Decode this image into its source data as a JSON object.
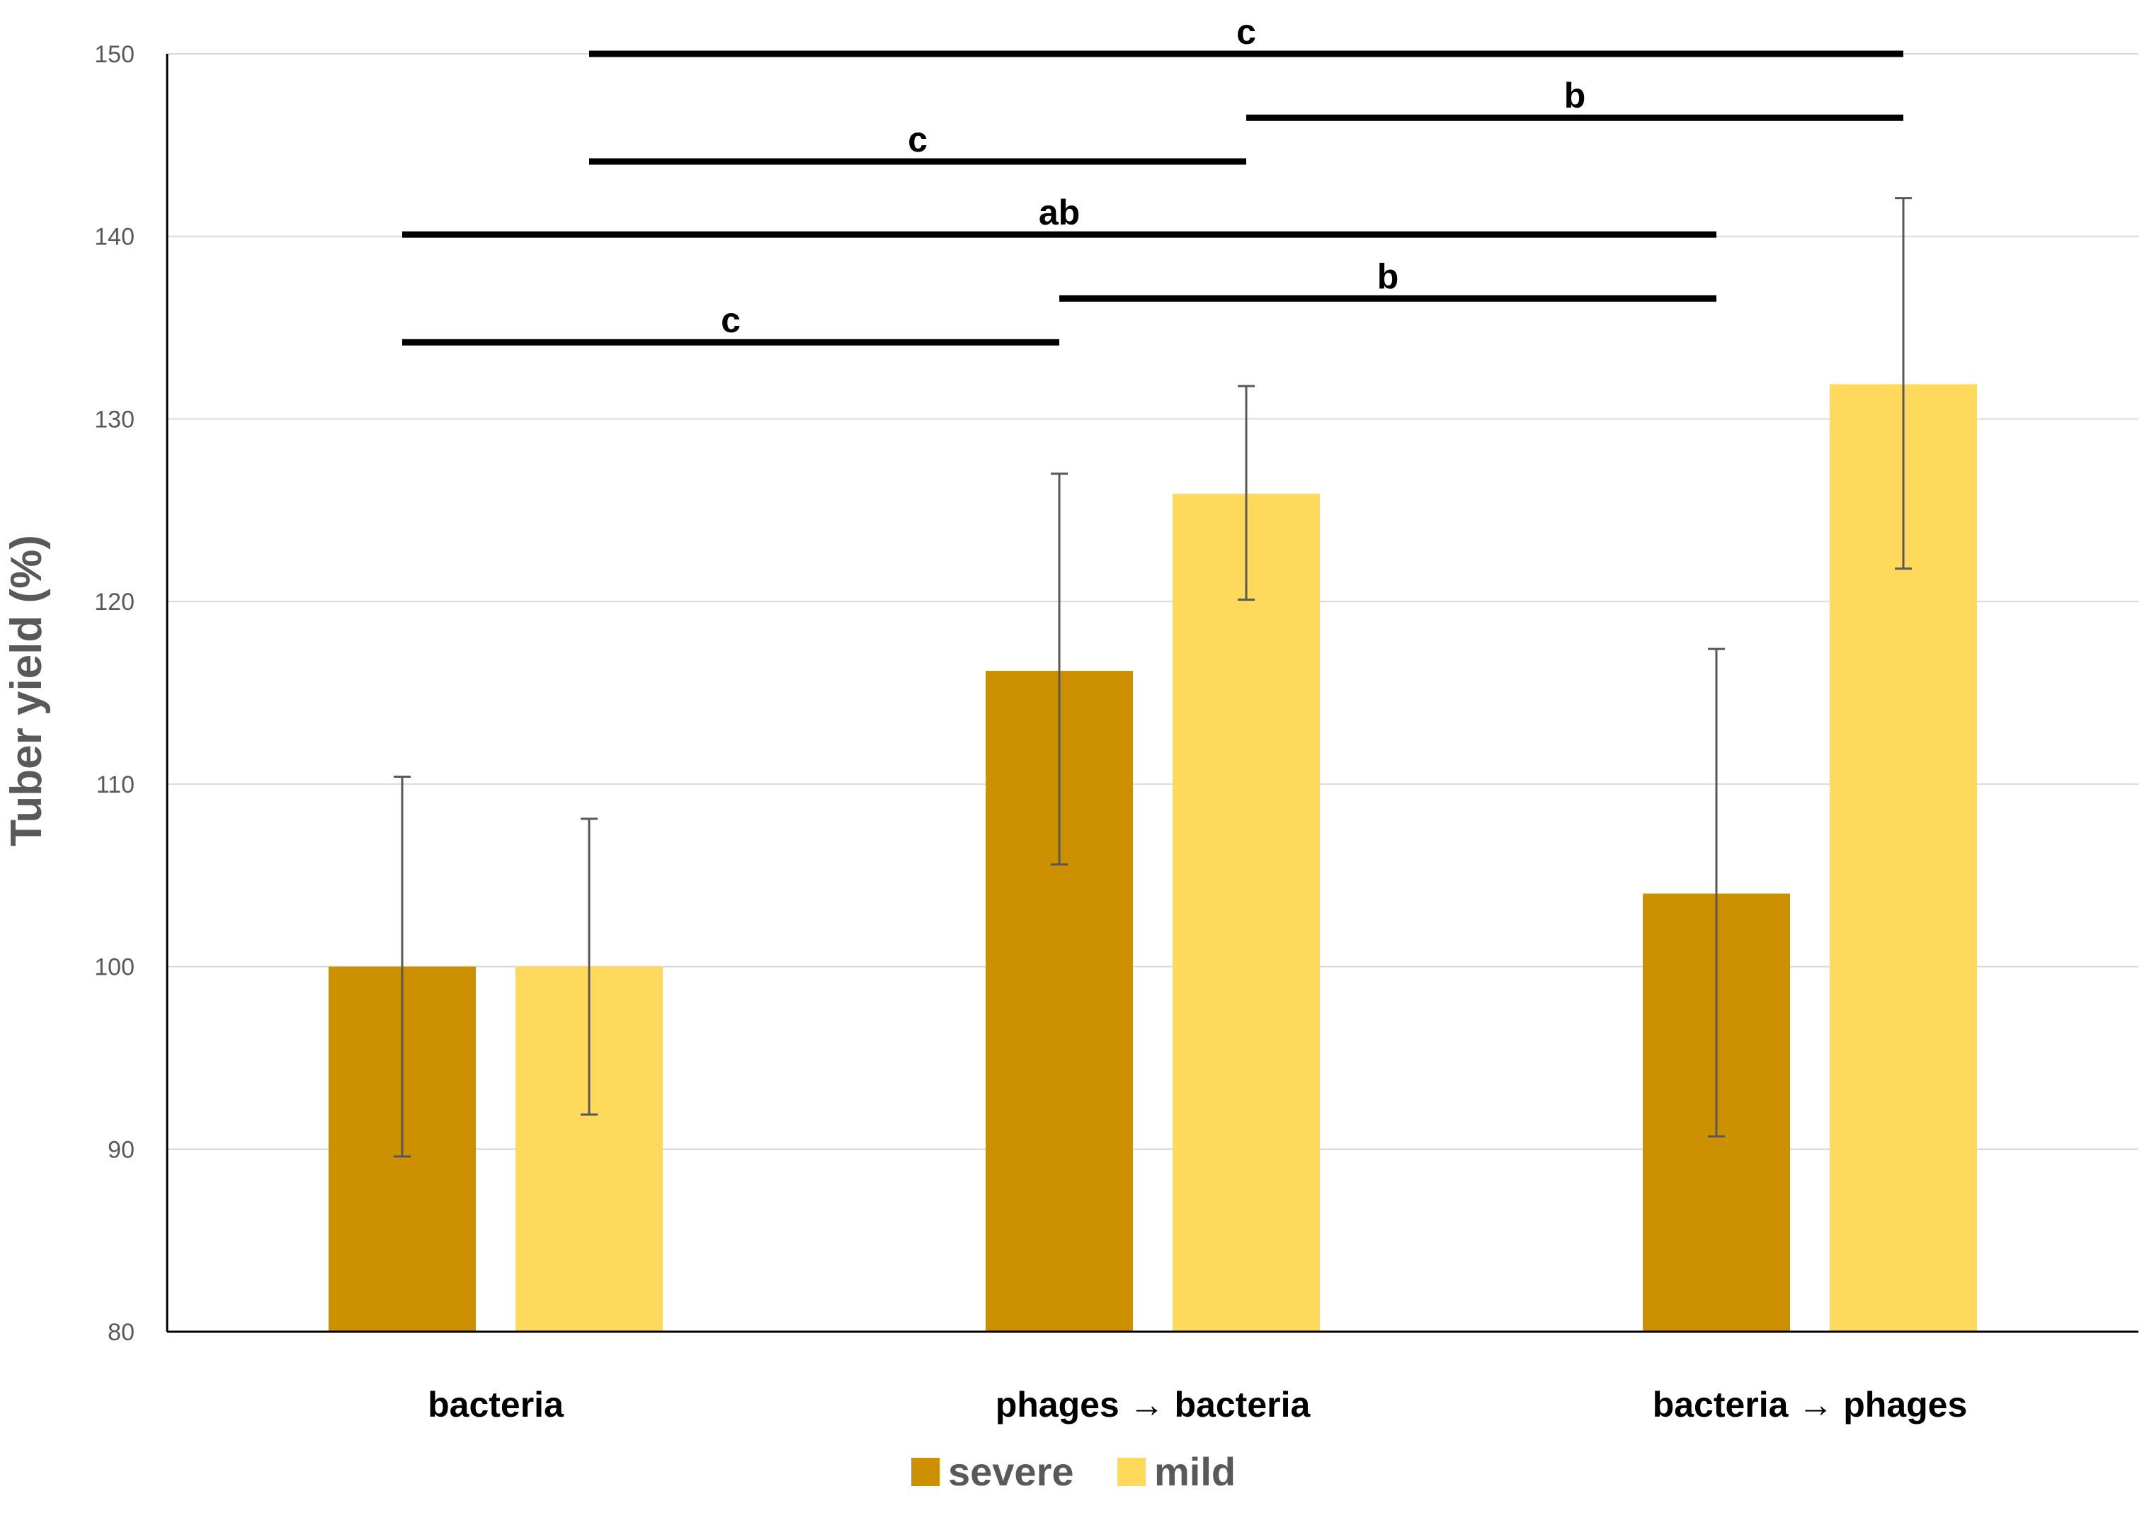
{
  "chart_data": {
    "type": "bar",
    "title": "",
    "xlabel": "",
    "ylabel": "Tuber yield (%)",
    "ylim": [
      80,
      150
    ],
    "yticks": [
      80,
      90,
      100,
      110,
      120,
      130,
      140,
      150
    ],
    "grid": true,
    "legend_position": "bottom-center",
    "categories": [
      "bacteria",
      "phages → bacteria",
      "bacteria → phages"
    ],
    "series": [
      {
        "name": "severe",
        "color": "#CC9000",
        "values": [
          100,
          116.2,
          104
        ],
        "errors": [
          [
            89.6,
            110.4
          ],
          [
            105.6,
            127.0
          ],
          [
            90.7,
            117.4
          ]
        ]
      },
      {
        "name": "mild",
        "color": "#FFD95C",
        "values": [
          100,
          125.9,
          131.9
        ],
        "errors": [
          [
            91.9,
            108.1
          ],
          [
            120.1,
            131.8
          ],
          [
            121.8,
            142.1
          ]
        ]
      }
    ],
    "significance": [
      {
        "from": [
          0,
          0
        ],
        "to": [
          1,
          0
        ],
        "y": 134.2,
        "label": "c"
      },
      {
        "from": [
          1,
          0
        ],
        "to": [
          2,
          0
        ],
        "y": 136.6,
        "label": "b"
      },
      {
        "from": [
          0,
          0
        ],
        "to": [
          2,
          0
        ],
        "y": 140.1,
        "label": "ab"
      },
      {
        "from": [
          0,
          1
        ],
        "to": [
          1,
          1
        ],
        "y": 144.1,
        "label": "c"
      },
      {
        "from": [
          1,
          1
        ],
        "to": [
          2,
          1
        ],
        "y": 146.5,
        "label": "b"
      },
      {
        "from": [
          0,
          1
        ],
        "to": [
          2,
          1
        ],
        "y": 150,
        "label": "c"
      }
    ]
  }
}
